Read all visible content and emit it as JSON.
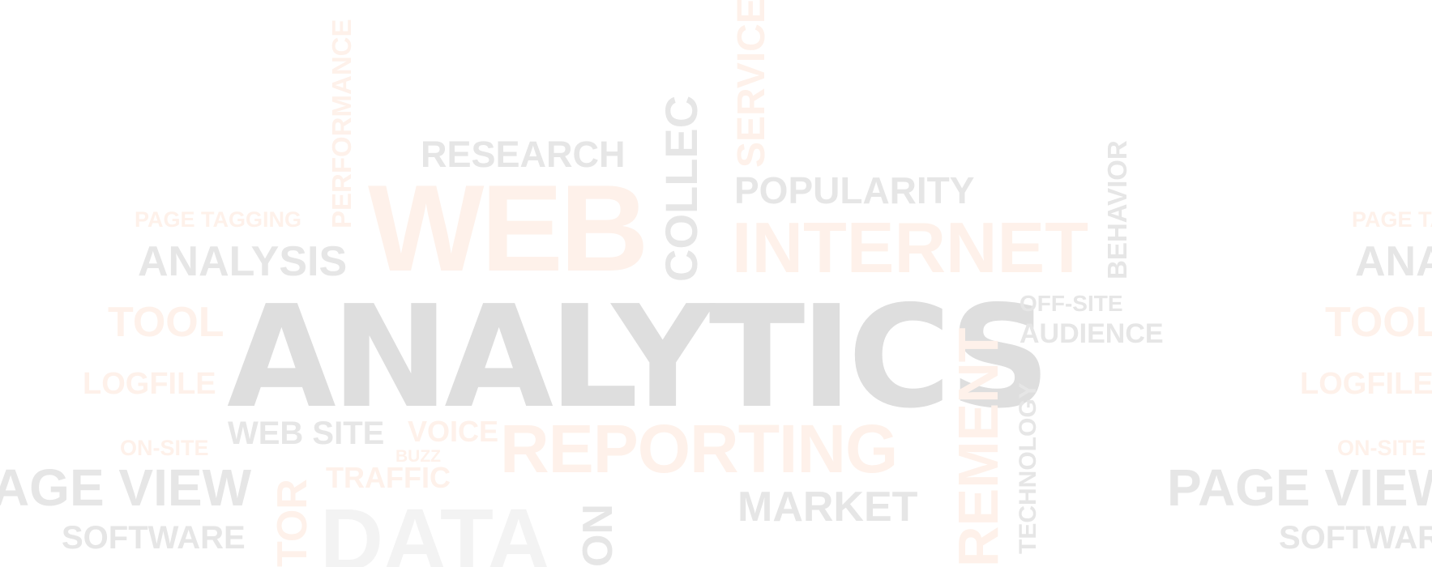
{
  "colors": {
    "gray_light": "#e6e6e6",
    "gray_mid": "#dedede",
    "orange_light": "#fde8dc",
    "orange_faint": "#fef1ea"
  },
  "words": {
    "web": "WEB",
    "analytics": "ANALYTICS",
    "reporting": "REPORTING",
    "internet": "INTERNET",
    "research": "RESEARCH",
    "popularity": "POPULARITY",
    "page_tagging": "PAGE TAGGING",
    "analysis": "ANALYSIS",
    "tool": "TOOL",
    "logfile": "LOGFILE",
    "on_site": "ON-SITE",
    "web_site": "WEB SITE",
    "voice": "VOICE",
    "buzz": "BUZZ",
    "traffic": "TRAFFIC",
    "page_view": "PAGE VIEW",
    "software": "SOFTWARE",
    "data": "DATA",
    "market": "MARKET",
    "off_site": "OFF-SITE",
    "audience": "AUDIENCE",
    "technology": "TECHNOLOGY",
    "behavior": "BEHAVIOR",
    "performance": "PERFORMANCE",
    "collection": "COLLEC",
    "service": "SERVICE",
    "measurement": "REMENT",
    "visitor": "TOR",
    "on_partial": "ON"
  }
}
